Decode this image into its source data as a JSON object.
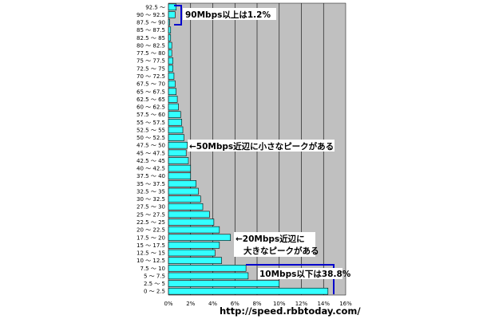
{
  "chart_data": {
    "type": "bar",
    "orientation": "horizontal",
    "categories": [
      "0 ～ 2.5",
      "2.5 ～ 5",
      "5 ～ 7.5",
      "7.5 ～ 10",
      "10 ～ 12.5",
      "12.5 ～ 15",
      "15 ～ 17.5",
      "17.5 ～ 20",
      "20 ～ 22.5",
      "22.5 ～ 25",
      "25 ～ 27.5",
      "27.5 ～ 30",
      "30 ～ 32.5",
      "32.5 ～ 35",
      "35 ～ 37.5",
      "37.5 ～ 40",
      "40 ～ 42.5",
      "42.5 ～ 45",
      "45 ～ 47.5",
      "47.5 ～ 50",
      "50 ～ 52.5",
      "52.5 ～ 55",
      "55 ～ 57.5",
      "57.5 ～ 60",
      "60 ～ 62.5",
      "62.5 ～ 65",
      "65 ～ 67.5",
      "67.5 ～ 70",
      "70 ～ 72.5",
      "72.5 ～ 75",
      "75 ～ 77.5",
      "77.5 ～ 80",
      "80 ～ 82.5",
      "82.5 ～ 85",
      "85 ～ 87.5",
      "87.5 ～ 90",
      "90 ～ 92.5",
      "92.5 ～"
    ],
    "values": [
      14.4,
      10.0,
      7.2,
      7.0,
      4.8,
      4.2,
      4.6,
      5.6,
      4.6,
      4.1,
      3.7,
      3.1,
      2.9,
      2.7,
      2.5,
      2.0,
      2.0,
      1.8,
      1.6,
      1.7,
      1.4,
      1.3,
      1.2,
      1.1,
      0.9,
      0.8,
      0.7,
      0.6,
      0.5,
      0.4,
      0.4,
      0.3,
      0.3,
      0.2,
      0.2,
      0.1,
      0.6,
      0.7
    ],
    "xlim": [
      0,
      16
    ],
    "xticks": [
      "0%",
      "2%",
      "4%",
      "6%",
      "8%",
      "10%",
      "12%",
      "14%",
      "16%"
    ],
    "grid": true,
    "bar_color": "#33ffff",
    "plot_background": "#c0c0c0",
    "bracket_color": "#0000cc",
    "annotations": {
      "top_bracket": "90Mbps以上は1.2%",
      "peak_50": "←50Mbps近辺に小さなピークがある",
      "peak_20_line1": "←20Mbps近辺に",
      "peak_20_line2": "大きなピークがある",
      "bottom_bracket": "10Mbps以下は38.8%"
    },
    "source_url": "http://speed.rbbtoday.com/"
  }
}
